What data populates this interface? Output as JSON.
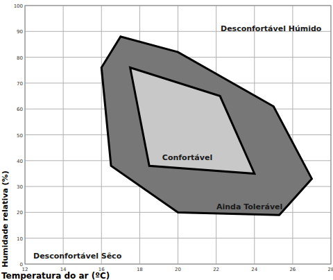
{
  "chart_data": {
    "type": "polygon",
    "x_label": "Temperatura do ar (ºC)",
    "y_label": "Humidade relativa (%)",
    "xlim": [
      12,
      28
    ],
    "xticks": [
      12,
      14,
      16,
      18,
      20,
      22,
      24,
      26,
      28
    ],
    "ylim": [
      0,
      100
    ],
    "yticks": [
      0,
      10,
      20,
      30,
      40,
      50,
      60,
      70,
      80,
      90,
      100
    ],
    "grid": true,
    "series": [
      {
        "color": "#777777",
        "x": [
          16,
          17,
          20,
          25,
          27,
          25.3,
          20,
          16.5
        ],
        "values": [
          76,
          88,
          82,
          61,
          33,
          19,
          20,
          38
        ]
      },
      {
        "color": "#c8c8c8",
        "x": [
          17.5,
          22.2,
          24,
          18.5
        ],
        "values": [
          76,
          65,
          35,
          38
        ]
      }
    ],
    "annotations": [
      "Desconfortável Húmido",
      "Confortável",
      "Ainda Tolerável",
      "Desconfortável Sêco"
    ]
  }
}
